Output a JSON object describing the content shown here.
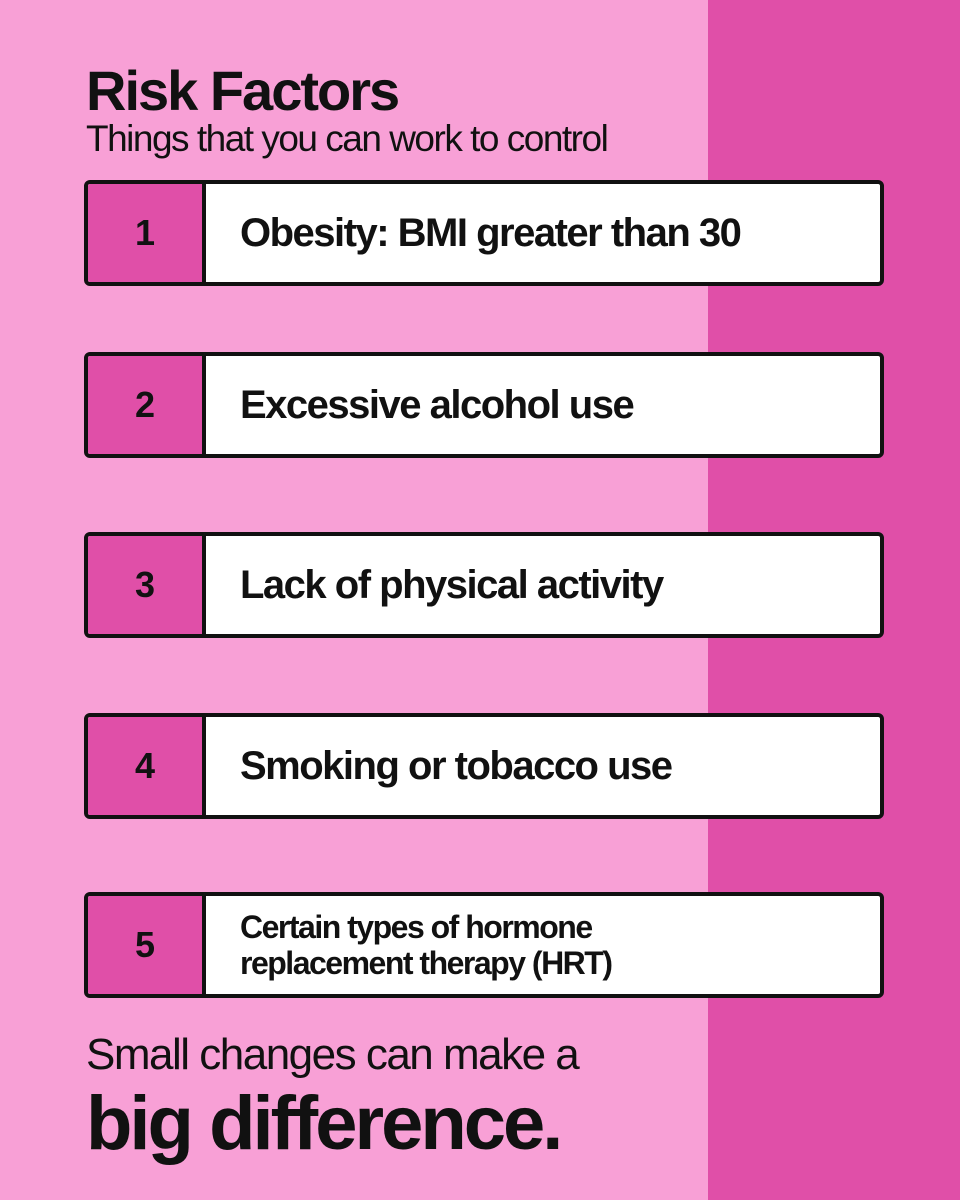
{
  "header": {
    "title": "Risk Factors",
    "subtitle": "Things that you can work to control"
  },
  "items": [
    {
      "number": "1",
      "text": "Obesity: BMI greater than 30"
    },
    {
      "number": "2",
      "text": "Excessive alcohol use"
    },
    {
      "number": "3",
      "text": "Lack of physical activity"
    },
    {
      "number": "4",
      "text": "Smoking or tobacco use"
    },
    {
      "number": "5",
      "text": "Certain types of hormone replacement therapy (HRT)"
    }
  ],
  "footer": {
    "line1": "Small changes can make a",
    "line2": "big difference."
  }
}
